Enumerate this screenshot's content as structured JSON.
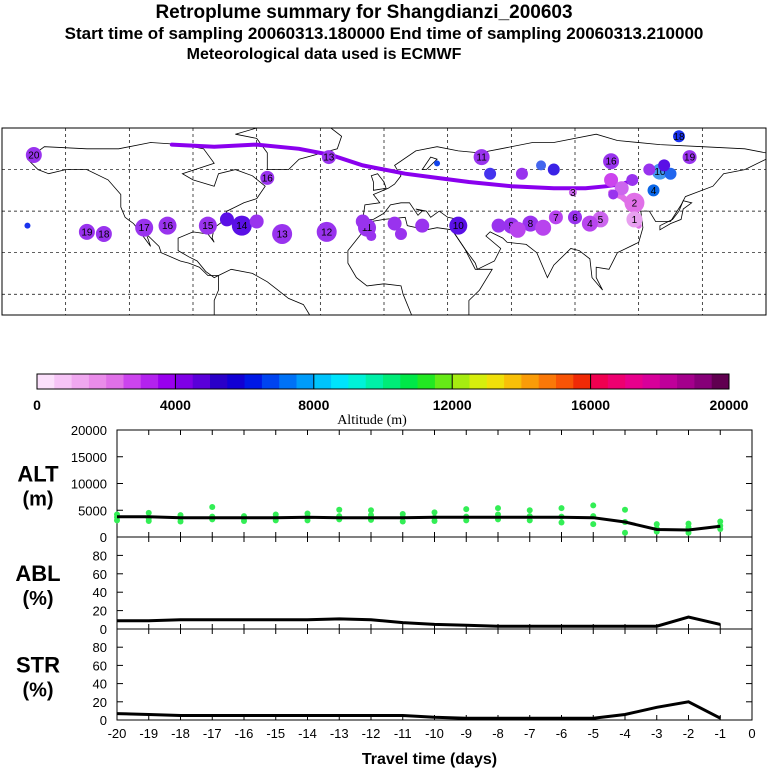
{
  "header": {
    "title": "Retroplume summary for Shangdianzi_200603",
    "sampling": "Start time of sampling 20060313.180000     End time of sampling 20060313.210000",
    "met": "Meteorological data used is ECMWF"
  },
  "colorbar": {
    "label": "Altitude (m)",
    "ticks": [
      "0",
      "4000",
      "8000",
      "12000",
      "16000",
      "20000"
    ],
    "colors": [
      "#fbe0fb",
      "#f6c4f6",
      "#f0a8f0",
      "#ea8cea",
      "#e070e8",
      "#cc44ee",
      "#b322ee",
      "#9900ee",
      "#7f00e6",
      "#5a00d9",
      "#2a00c8",
      "#1100d4",
      "#0018e6",
      "#0044f0",
      "#0072f6",
      "#009cfa",
      "#00c4fc",
      "#00e4fc",
      "#00f2d8",
      "#00f0a8",
      "#00ec78",
      "#00e848",
      "#22e822",
      "#66ea16",
      "#a6ec10",
      "#d6ee0c",
      "#f0e00a",
      "#f8c008",
      "#fa9c08",
      "#fa7808",
      "#f85406",
      "#f02a06",
      "#f00050",
      "#ee0070",
      "#e8008c",
      "#d8009a",
      "#c0009a",
      "#a4008c",
      "#860078",
      "#600050"
    ]
  },
  "map": {
    "day_labels": [
      {
        "t": "20",
        "lon": -165,
        "lat": 67,
        "c": "#9933ee",
        "r": 8
      },
      {
        "t": "",
        "lon": -168,
        "lat": 33,
        "c": "#1a33ee",
        "r": 3
      },
      {
        "t": "",
        "lon": -136,
        "lat": 56,
        "c": "#ffffff",
        "r": 0
      },
      {
        "t": "19",
        "lon": -140,
        "lat": 30,
        "c": "#9933ee",
        "r": 8
      },
      {
        "t": "18",
        "lon": -132,
        "lat": 29,
        "c": "#9933ee",
        "r": 8
      },
      {
        "t": "17",
        "lon": -113,
        "lat": 32,
        "c": "#9933ee",
        "r": 9
      },
      {
        "t": "16",
        "lon": -102,
        "lat": 33,
        "c": "#9933ee",
        "r": 9
      },
      {
        "t": "15",
        "lon": -83,
        "lat": 33,
        "c": "#9933ee",
        "r": 9
      },
      {
        "t": "14",
        "lon": -67,
        "lat": 33,
        "c": "#5a10e6",
        "r": 10
      },
      {
        "t": "13",
        "lon": -48,
        "lat": 29,
        "c": "#9933ee",
        "r": 10
      },
      {
        "t": "12",
        "lon": -27,
        "lat": 30,
        "c": "#9933ee",
        "r": 10
      },
      {
        "t": "11",
        "lon": -8,
        "lat": 32,
        "c": "#9933ee",
        "r": 9
      },
      {
        "t": "10",
        "lon": 35,
        "lat": 33,
        "c": "#5a10e6",
        "r": 9
      },
      {
        "t": "9",
        "lon": 60,
        "lat": 33,
        "c": "#9933ee",
        "r": 8
      },
      {
        "t": "8",
        "lon": 69,
        "lat": 34,
        "c": "#9933ee",
        "r": 8
      },
      {
        "t": "7",
        "lon": 81,
        "lat": 37,
        "c": "#b844ee",
        "r": 7
      },
      {
        "t": "6",
        "lon": 90,
        "lat": 37,
        "c": "#9933ee",
        "r": 7
      },
      {
        "t": "5",
        "lon": 102,
        "lat": 36,
        "c": "#cc66ee",
        "r": 8
      },
      {
        "t": "4",
        "lon": 97,
        "lat": 34,
        "c": "#b844ee",
        "r": 8
      },
      {
        "t": "3",
        "lon": 89,
        "lat": 49,
        "c": "#cc66ee",
        "r": 4
      },
      {
        "t": "2",
        "lon": 118,
        "lat": 44,
        "c": "#e070e8",
        "r": 10
      },
      {
        "t": "1",
        "lon": 118,
        "lat": 36,
        "c": "#e8a0f0",
        "r": 8
      },
      {
        "t": "13",
        "lon": -26,
        "lat": 66,
        "c": "#9933ee",
        "r": 7
      },
      {
        "t": "11",
        "lon": 46,
        "lat": 66,
        "c": "#9933ee",
        "r": 8
      },
      {
        "t": "16",
        "lon": 107,
        "lat": 64,
        "c": "#9933ee",
        "r": 8
      },
      {
        "t": "19",
        "lon": 144,
        "lat": 66,
        "c": "#9933ee",
        "r": 7
      },
      {
        "t": "18",
        "lon": 139,
        "lat": 76,
        "c": "#1a33ee",
        "r": 6
      },
      {
        "t": "10",
        "lon": 130,
        "lat": 59,
        "c": "#4499ee",
        "r": 8
      },
      {
        "t": "4",
        "lon": 127,
        "lat": 50,
        "c": "#0a66e6",
        "r": 6
      },
      {
        "t": "",
        "lon": 117,
        "lat": 55,
        "c": "#9933ee",
        "r": 6
      },
      {
        "t": "",
        "lon": 107,
        "lat": 55,
        "c": "#cc44ee",
        "r": 7
      },
      {
        "t": "",
        "lon": 112,
        "lat": 51,
        "c": "#cc66ee",
        "r": 7
      },
      {
        "t": "",
        "lon": 80,
        "lat": 60,
        "c": "#3a22e6",
        "r": 6
      },
      {
        "t": "",
        "lon": 74,
        "lat": 62,
        "c": "#4466ee",
        "r": 5
      },
      {
        "t": "",
        "lon": 65,
        "lat": 58,
        "c": "#9933ee",
        "r": 6
      },
      {
        "t": "",
        "lon": 50,
        "lat": 58,
        "c": "#4433ee",
        "r": 6
      },
      {
        "t": "16",
        "lon": -55,
        "lat": 56,
        "c": "#9933ee",
        "r": 7
      },
      {
        "t": "",
        "lon": 25,
        "lat": 63,
        "c": "#1144ee",
        "r": 3
      },
      {
        "t": "",
        "lon": 135,
        "lat": 58,
        "c": "#2266ee",
        "r": 6
      },
      {
        "t": "",
        "lon": 132,
        "lat": 62,
        "c": "#5a10e6",
        "r": 6
      },
      {
        "t": "",
        "lon": 125,
        "lat": 60,
        "c": "#9933ee",
        "r": 6
      },
      {
        "t": "",
        "lon": -10,
        "lat": 35,
        "c": "#9933ee",
        "r": 7
      },
      {
        "t": "",
        "lon": 5,
        "lat": 34,
        "c": "#9933ee",
        "r": 7
      },
      {
        "t": "",
        "lon": 18,
        "lat": 33,
        "c": "#9933ee",
        "r": 7
      },
      {
        "t": "",
        "lon": 8,
        "lat": 29,
        "c": "#9933ee",
        "r": 6
      },
      {
        "t": "",
        "lon": -6,
        "lat": 28,
        "c": "#9933ee",
        "r": 5
      },
      {
        "t": "",
        "lon": -74,
        "lat": 36,
        "c": "#5a10e6",
        "r": 7
      },
      {
        "t": "",
        "lon": -60,
        "lat": 35,
        "c": "#9933ee",
        "r": 7
      },
      {
        "t": "",
        "lon": 63,
        "lat": 31,
        "c": "#b844ee",
        "r": 8
      },
      {
        "t": "",
        "lon": 75,
        "lat": 32,
        "c": "#b844ee",
        "r": 8
      },
      {
        "t": "",
        "lon": 54,
        "lat": 33,
        "c": "#9933ee",
        "r": 7
      },
      {
        "t": "",
        "lon": 108,
        "lat": 48,
        "c": "#9933ee",
        "r": 5
      }
    ]
  },
  "chart_data": [
    {
      "type": "line",
      "name": "ALT",
      "ylabel_line1": "ALT",
      "ylabel_line2": "(m)",
      "ylim": [
        0,
        20000
      ],
      "y_ticks": [
        "20000",
        "15000",
        "10000",
        "5000",
        "0"
      ],
      "x": [
        -20,
        -19,
        -18,
        -17,
        -16,
        -15,
        -14,
        -13,
        -12,
        -11,
        -10,
        -9,
        -8,
        -7,
        -6,
        -5,
        -4,
        -3,
        -2,
        -1
      ],
      "median_values": [
        3800,
        3800,
        3600,
        3600,
        3600,
        3600,
        3700,
        3600,
        3600,
        3600,
        3700,
        3700,
        3700,
        3700,
        3700,
        3600,
        2800,
        1400,
        1300,
        2000
      ],
      "scatter_x": [
        -20,
        -20,
        -20,
        -19,
        -19,
        -19,
        -18,
        -18,
        -18,
        -17,
        -17,
        -17,
        -16,
        -16,
        -16,
        -15,
        -15,
        -15,
        -14,
        -14,
        -14,
        -13,
        -13,
        -13,
        -12,
        -12,
        -12,
        -11,
        -11,
        -11,
        -10,
        -10,
        -10,
        -9,
        -9,
        -9,
        -8,
        -8,
        -8,
        -7,
        -7,
        -7,
        -6,
        -6,
        -6,
        -5,
        -5,
        -5,
        -4,
        -4,
        -4,
        -3,
        -3,
        -3,
        -2,
        -2,
        -2,
        -1,
        -1,
        -1
      ],
      "scatter_y": [
        4200,
        3700,
        3100,
        4500,
        3500,
        3000,
        4100,
        3500,
        2900,
        5600,
        3800,
        3300,
        3900,
        3500,
        3000,
        4200,
        3600,
        3100,
        4400,
        3800,
        3100,
        5100,
        3900,
        3300,
        5000,
        4100,
        3200,
        4300,
        3700,
        2900,
        4600,
        3600,
        3000,
        5200,
        3800,
        3100,
        5400,
        4200,
        3300,
        5000,
        3900,
        3100,
        5400,
        3800,
        2700,
        5900,
        3900,
        2400,
        5100,
        2800,
        800,
        2400,
        1600,
        1000,
        2500,
        1800,
        800,
        2900,
        2100,
        1500
      ]
    },
    {
      "type": "line",
      "name": "ABL",
      "ylabel_line1": "ABL",
      "ylabel_line2": "(%)",
      "ylim": [
        0,
        100
      ],
      "y_ticks": [
        "80",
        "60",
        "40",
        "20",
        "0"
      ],
      "x": [
        -20,
        -19,
        -18,
        -17,
        -16,
        -15,
        -14,
        -13,
        -12,
        -11,
        -10,
        -9,
        -8,
        -7,
        -6,
        -5,
        -4,
        -3,
        -2,
        -1
      ],
      "values": [
        9,
        9,
        10,
        10,
        10,
        10,
        10,
        11,
        10,
        7,
        5,
        4,
        3,
        3,
        3,
        3,
        3,
        3,
        13,
        5
      ]
    },
    {
      "type": "line",
      "name": "STR",
      "ylabel_line1": "STR",
      "ylabel_line2": "(%)",
      "ylim": [
        0,
        100
      ],
      "y_ticks": [
        "80",
        "60",
        "40",
        "20",
        "0"
      ],
      "x": [
        -20,
        -19,
        -18,
        -17,
        -16,
        -15,
        -14,
        -13,
        -12,
        -11,
        -10,
        -9,
        -8,
        -7,
        -6,
        -5,
        -4,
        -3,
        -2,
        -1
      ],
      "values": [
        7,
        6,
        5,
        5,
        5,
        5,
        5,
        5,
        5,
        5,
        3,
        2,
        2,
        2,
        2,
        2,
        6,
        14,
        20,
        2
      ],
      "xlabel": "Travel time (days)",
      "x_ticks": [
        "-20",
        "-19",
        "-18",
        "-17",
        "-16",
        "-15",
        "-14",
        "-13",
        "-12",
        "-11",
        "-10",
        "-9",
        "-8",
        "-7",
        "-6",
        "-5",
        "-4",
        "-3",
        "-2",
        "-1",
        "0"
      ]
    }
  ],
  "colors": {
    "median_line": "#000000",
    "scatter": "#33ee55",
    "track": "#8a00ee"
  }
}
